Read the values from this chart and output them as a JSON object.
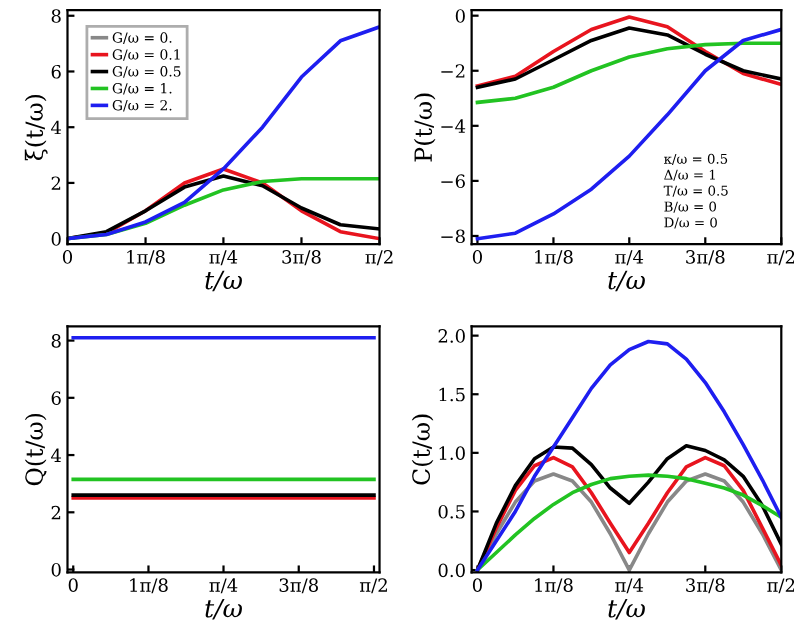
{
  "chart_data": [
    {
      "type": "line",
      "xlabel": "t/ω",
      "ylabel": "ξ(t/ω)",
      "legend": "top left",
      "grid": false,
      "x": [
        0,
        0.196,
        0.393,
        0.589,
        0.785,
        0.982,
        1.178,
        1.374,
        1.571
      ],
      "xlim": [
        0,
        1.571
      ],
      "xticks": [
        {
          "value": 0,
          "label": "0"
        },
        {
          "value": 0.393,
          "label": "1π/8"
        },
        {
          "value": 0.785,
          "label": "π/4"
        },
        {
          "value": 1.178,
          "label": "3π/8"
        },
        {
          "value": 1.571,
          "label": "π/2"
        }
      ],
      "ylim": [
        -0.2,
        8.2
      ],
      "yticks": [
        0,
        2,
        4,
        6,
        8
      ],
      "series": [
        {
          "name": "G/ω = 0.",
          "color": "#888888",
          "values": [
            null,
            null,
            null,
            null,
            null,
            null,
            null,
            null,
            null
          ]
        },
        {
          "name": "G/ω = 0.1",
          "color": "#e8141e",
          "values": [
            0,
            0.2,
            1.0,
            2.0,
            2.5,
            2.0,
            1.0,
            0.25,
            0
          ]
        },
        {
          "name": "G/ω = 0.5",
          "color": "#000000",
          "values": [
            0,
            0.25,
            1.0,
            1.85,
            2.25,
            1.9,
            1.1,
            0.5,
            0.35
          ]
        },
        {
          "name": "G/ω = 1.",
          "color": "#22c322",
          "values": [
            0,
            0.15,
            0.55,
            1.2,
            1.75,
            2.05,
            2.15,
            2.15,
            2.15
          ]
        },
        {
          "name": "G/ω = 2.",
          "color": "#1e1ef0",
          "values": [
            0,
            0.15,
            0.6,
            1.3,
            2.5,
            4.0,
            5.8,
            7.1,
            7.6
          ]
        }
      ]
    },
    {
      "type": "line",
      "xlabel": "t/ω",
      "ylabel": "P(t/ω)",
      "grid": false,
      "annotations": [
        "κ/ω = 0.5",
        "Δ/ω = 1",
        "T/ω = 0.5",
        "B/ω = 0",
        "D/ω = 0"
      ],
      "x": [
        0,
        0.196,
        0.393,
        0.589,
        0.785,
        0.982,
        1.178,
        1.374,
        1.571
      ],
      "xlim": [
        -0.03,
        1.571
      ],
      "xticks": [
        {
          "value": 0,
          "label": "0"
        },
        {
          "value": 0.393,
          "label": "1π/8"
        },
        {
          "value": 0.785,
          "label": "π/4"
        },
        {
          "value": 1.178,
          "label": "3π/8"
        },
        {
          "value": 1.571,
          "label": "π/2"
        }
      ],
      "ylim": [
        -8.3,
        0.2
      ],
      "yticks": [
        {
          "value": -8,
          "label": "−8"
        },
        {
          "value": -6,
          "label": "−6"
        },
        {
          "value": -4,
          "label": "−4"
        },
        {
          "value": -2,
          "label": "−2"
        },
        0
      ],
      "series": [
        {
          "color": "#e8141e",
          "values": [
            -2.55,
            -2.2,
            -1.3,
            -0.5,
            -0.05,
            -0.4,
            -1.3,
            -2.1,
            -2.5
          ]
        },
        {
          "color": "#000000",
          "values": [
            -2.6,
            -2.3,
            -1.6,
            -0.9,
            -0.45,
            -0.7,
            -1.4,
            -2.0,
            -2.3
          ]
        },
        {
          "color": "#22c322",
          "values": [
            -3.15,
            -3.0,
            -2.6,
            -2.0,
            -1.5,
            -1.2,
            -1.05,
            -1.0,
            -1.0
          ]
        },
        {
          "color": "#1e1ef0",
          "values": [
            -8.1,
            -7.9,
            -7.2,
            -6.3,
            -5.1,
            -3.6,
            -2.0,
            -0.9,
            -0.5
          ]
        }
      ]
    },
    {
      "type": "line",
      "xlabel": "t/ω",
      "ylabel": "Q(t/ω)",
      "grid": false,
      "x": [
        0,
        1.571
      ],
      "xlim": [
        -0.03,
        1.6
      ],
      "xticks": [
        {
          "value": 0,
          "label": "0"
        },
        {
          "value": 0.393,
          "label": "1π/8"
        },
        {
          "value": 0.785,
          "label": "π/4"
        },
        {
          "value": 1.178,
          "label": "3π/8"
        },
        {
          "value": 1.571,
          "label": "π/2"
        }
      ],
      "ylim": [
        -0.1,
        8.5
      ],
      "yticks": [
        0,
        2,
        4,
        6,
        8
      ],
      "series": [
        {
          "color": "#e8141e",
          "values": [
            2.5,
            2.5
          ]
        },
        {
          "color": "#000000",
          "values": [
            2.6,
            2.6
          ]
        },
        {
          "color": "#22c322",
          "values": [
            3.15,
            3.15
          ]
        },
        {
          "color": "#1e1ef0",
          "values": [
            8.1,
            8.1
          ]
        }
      ]
    },
    {
      "type": "line",
      "xlabel": "t/ω",
      "ylabel": "C(t/ω)",
      "grid": false,
      "x": [
        0,
        0.098,
        0.196,
        0.295,
        0.393,
        0.491,
        0.589,
        0.687,
        0.785,
        0.884,
        0.982,
        1.08,
        1.178,
        1.276,
        1.374,
        1.473,
        1.571
      ],
      "xlim": [
        -0.03,
        1.571
      ],
      "xticks": [
        {
          "value": 0,
          "label": "0"
        },
        {
          "value": 0.393,
          "label": "1π/8"
        },
        {
          "value": 0.785,
          "label": "π/4"
        },
        {
          "value": 1.178,
          "label": "3π/8"
        },
        {
          "value": 1.571,
          "label": "π/2"
        }
      ],
      "ylim": [
        -0.02,
        2.08
      ],
      "yticks": [
        {
          "value": 0,
          "label": "0.0"
        },
        0.5,
        {
          "value": 1,
          "label": "1.0"
        },
        1.5,
        {
          "value": 2,
          "label": "2.0"
        }
      ],
      "series": [
        {
          "color": "#888888",
          "values": [
            0,
            0.31,
            0.58,
            0.76,
            0.82,
            0.76,
            0.58,
            0.31,
            0,
            0.31,
            0.58,
            0.76,
            0.82,
            0.76,
            0.58,
            0.31,
            0
          ]
        },
        {
          "color": "#e8141e",
          "values": [
            0,
            0.36,
            0.68,
            0.89,
            0.96,
            0.88,
            0.66,
            0.4,
            0.15,
            0.4,
            0.66,
            0.88,
            0.96,
            0.89,
            0.68,
            0.36,
            0.04
          ]
        },
        {
          "color": "#000000",
          "values": [
            0,
            0.4,
            0.72,
            0.95,
            1.05,
            1.04,
            0.9,
            0.7,
            0.57,
            0.75,
            0.95,
            1.06,
            1.02,
            0.94,
            0.8,
            0.55,
            0.22
          ]
        },
        {
          "color": "#22c322",
          "values": [
            0,
            0.15,
            0.3,
            0.44,
            0.56,
            0.66,
            0.73,
            0.78,
            0.8,
            0.81,
            0.8,
            0.78,
            0.74,
            0.7,
            0.64,
            0.55,
            0.45
          ]
        },
        {
          "color": "#1e1ef0",
          "values": [
            0,
            0.25,
            0.5,
            0.8,
            1.05,
            1.3,
            1.55,
            1.75,
            1.88,
            1.95,
            1.93,
            1.8,
            1.6,
            1.35,
            1.07,
            0.77,
            0.45
          ]
        }
      ]
    }
  ]
}
